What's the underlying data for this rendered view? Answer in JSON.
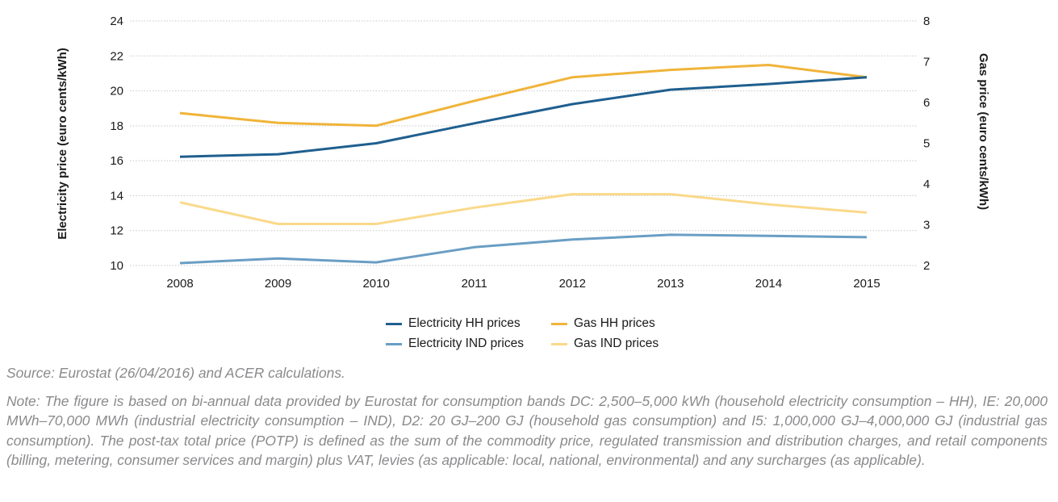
{
  "chart_data": {
    "type": "line",
    "title": "",
    "x": [
      "2008",
      "2009",
      "2010",
      "2011",
      "2012",
      "2013",
      "2014",
      "2015"
    ],
    "ylabel": "Electricity price (euro cents/kWh)",
    "y2label": "Gas price (euro cents/kWh)",
    "ylim": [
      10,
      24
    ],
    "y2lim": [
      2,
      8
    ],
    "yticks": [
      "10",
      "12",
      "14",
      "16",
      "18",
      "20",
      "22",
      "24"
    ],
    "y2ticks": [
      "2",
      "3",
      "4",
      "5",
      "6",
      "7",
      "8"
    ],
    "grid": true,
    "legend_position": "bottom-center",
    "series": [
      {
        "name": "Electricity HH prices",
        "axis": "left",
        "color": "#1f5f8f",
        "values": [
          16.23,
          16.37,
          17.0,
          18.14,
          19.24,
          20.07,
          20.39,
          20.78
        ]
      },
      {
        "name": "Electricity IND prices",
        "axis": "left",
        "color": "#6a9ec4",
        "values": [
          10.14,
          10.4,
          10.18,
          11.05,
          11.49,
          11.76,
          11.7,
          11.62
        ]
      },
      {
        "name": "Gas HH prices",
        "axis": "right",
        "color": "#f0b43a",
        "values": [
          5.74,
          5.5,
          5.43,
          6.04,
          6.62,
          6.8,
          6.92,
          6.62
        ]
      },
      {
        "name": "Gas IND prices",
        "axis": "right",
        "color": "#fad98a",
        "values": [
          3.55,
          3.02,
          3.02,
          3.42,
          3.75,
          3.75,
          3.5,
          3.3
        ]
      }
    ]
  },
  "legend": {
    "items": [
      {
        "label": "Electricity HH prices",
        "color": "#1f5f8f"
      },
      {
        "label": "Gas HH prices",
        "color": "#f0b43a"
      },
      {
        "label": "Electricity IND prices",
        "color": "#6a9ec4"
      },
      {
        "label": "Gas IND prices",
        "color": "#fad98a"
      }
    ]
  },
  "source": "Source: Eurostat (26/04/2016) and ACER calculations.",
  "note": "Note: The figure is based on bi-annual data provided by Eurostat for consumption bands DC: 2,500–5,000 kWh (household electricity consumption – HH), IE: 20,000 MWh–70,000 MWh (industrial electricity consumption – IND), D2: 20 GJ–200 GJ (household gas consumption) and I5: 1,000,000 GJ–4,000,000 GJ (industrial gas consumption). The post-tax total price (POTP) is defined as the sum of the commodity price, regulated transmission and distribution charges, and retail components (billing, metering, consumer services and margin) plus VAT, levies (as applicable: local, national, environmental) and any surcharges (as applicable)."
}
